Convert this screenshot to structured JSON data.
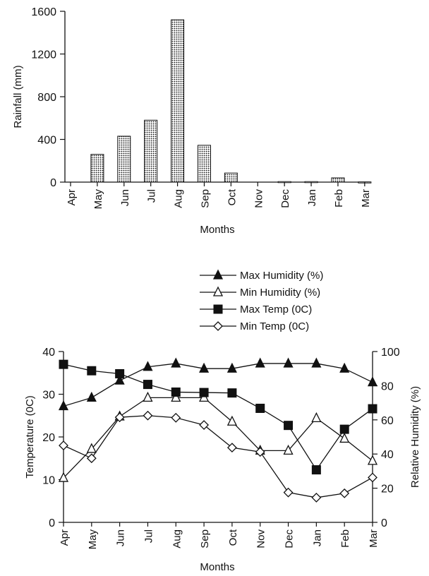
{
  "chart_data": [
    {
      "type": "bar",
      "categories": [
        "Apr",
        "May",
        "Jun",
        "Jul",
        "Aug",
        "Sep",
        "Oct",
        "Nov",
        "Dec",
        "Jan",
        "Feb",
        "Mar"
      ],
      "values": [
        0,
        260,
        430,
        580,
        1520,
        345,
        85,
        0,
        5,
        5,
        40,
        2
      ],
      "title": "",
      "xlabel": "Months",
      "ylabel": "Rainfall (mm)",
      "ylim": [
        0,
        1600
      ],
      "yticks": [
        0,
        400,
        800,
        1200,
        1600
      ],
      "grid": false
    },
    {
      "type": "line",
      "categories": [
        "Apr",
        "May",
        "Jun",
        "Jul",
        "Aug",
        "Sep",
        "Oct",
        "Nov",
        "Dec",
        "Jan",
        "Feb",
        "Mar"
      ],
      "xlabel": "Months",
      "ylabel": "Temperature (0C)",
      "ylim": [
        0,
        40
      ],
      "yticks": [
        0,
        10,
        20,
        30,
        40
      ],
      "y2label": "Relative Humidity (%)",
      "y2lim": [
        0,
        100
      ],
      "y2ticks": [
        0,
        20,
        40,
        60,
        80,
        100
      ],
      "legend_position": "top-center",
      "grid": false,
      "series": [
        {
          "name": "Max Humidity (%)",
          "axis": "right",
          "marker": "triangle-filled",
          "values": [
            68,
            73,
            83,
            91,
            93,
            90,
            90,
            93,
            93,
            93,
            90,
            82
          ]
        },
        {
          "name": "Min Humidity (%)",
          "axis": "right",
          "marker": "triangle-open",
          "values": [
            26,
            43,
            62,
            73,
            73,
            73,
            59,
            42,
            42,
            61,
            49,
            36
          ]
        },
        {
          "name": "Max Temp (0C)",
          "axis": "left",
          "marker": "square-filled",
          "values": [
            37,
            35.5,
            34.8,
            32.3,
            30.5,
            30.4,
            30.3,
            26.7,
            22.7,
            12.3,
            21.8,
            26.6
          ]
        },
        {
          "name": "Min Temp (0C)",
          "axis": "left",
          "marker": "diamond-open",
          "values": [
            18,
            15,
            24.6,
            25,
            24.5,
            22.8,
            17.5,
            16.5,
            7,
            5.8,
            6.8,
            10.5
          ]
        }
      ]
    }
  ]
}
